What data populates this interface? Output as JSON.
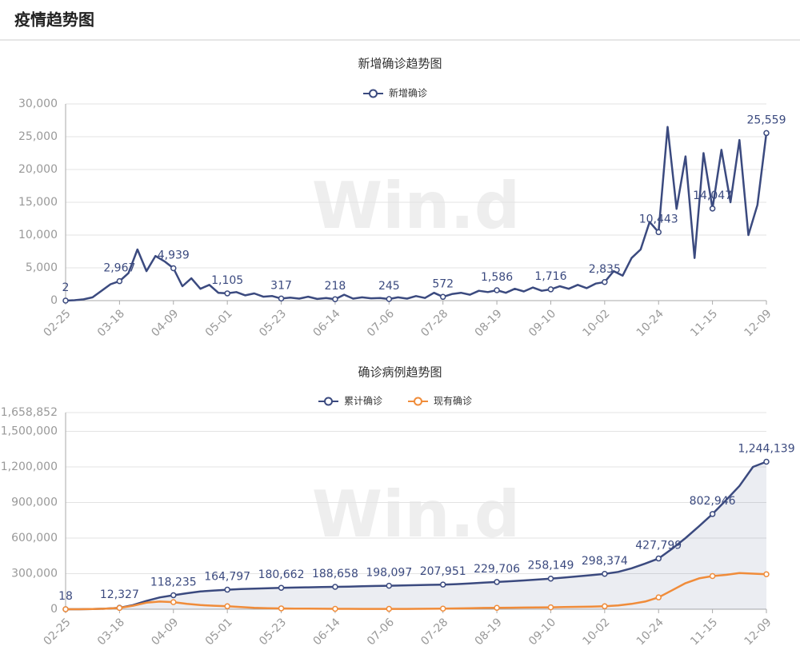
{
  "header": {
    "title": "疫情趋势图"
  },
  "watermark": "Win.d",
  "chart_data": [
    {
      "type": "line",
      "title": "新增确诊趋势图",
      "categories": [
        "02-25",
        null,
        null,
        null,
        null,
        null,
        "03-18",
        null,
        null,
        null,
        null,
        null,
        "04-09",
        null,
        null,
        null,
        null,
        null,
        "05-01",
        null,
        null,
        null,
        null,
        null,
        "05-23",
        null,
        null,
        null,
        null,
        null,
        "06-14",
        null,
        null,
        null,
        null,
        null,
        "07-06",
        null,
        null,
        null,
        null,
        null,
        "07-28",
        null,
        null,
        null,
        null,
        null,
        "08-19",
        null,
        null,
        null,
        null,
        null,
        "09-10",
        null,
        null,
        null,
        null,
        null,
        "10-02",
        null,
        null,
        null,
        null,
        null,
        "10-24",
        null,
        null,
        null,
        null,
        null,
        "11-15",
        null,
        null,
        null,
        null,
        null,
        "12-09"
      ],
      "series": [
        {
          "name": "新增确诊",
          "color": "#3b4a7f",
          "values": [
            2,
            60,
            200,
            500,
            1500,
            2500,
            2967,
            4200,
            7800,
            4500,
            6800,
            6000,
            4939,
            2200,
            3400,
            1800,
            2400,
            1200,
            1105,
            1300,
            800,
            1100,
            600,
            700,
            317,
            450,
            300,
            600,
            250,
            400,
            218,
            900,
            300,
            500,
            350,
            400,
            245,
            500,
            300,
            700,
            400,
            1200,
            572,
            1000,
            1200,
            900,
            1500,
            1300,
            1586,
            1200,
            1800,
            1400,
            2000,
            1500,
            1716,
            2200,
            1800,
            2400,
            1900,
            2600,
            2835,
            4500,
            3800,
            6500,
            7800,
            12000,
            10443,
            26500,
            14000,
            22000,
            6500,
            22500,
            14047,
            23000,
            15000,
            24500,
            10000,
            14600,
            25559
          ],
          "value_labels": [
            "2",
            null,
            null,
            null,
            null,
            null,
            "2,967",
            null,
            null,
            null,
            null,
            null,
            "4,939",
            null,
            null,
            null,
            null,
            null,
            "1,105",
            null,
            null,
            null,
            null,
            null,
            "317",
            null,
            null,
            null,
            null,
            null,
            "218",
            null,
            null,
            null,
            null,
            null,
            "245",
            null,
            null,
            null,
            null,
            null,
            "572",
            null,
            null,
            null,
            null,
            null,
            "1,586",
            null,
            null,
            null,
            null,
            null,
            "1,716",
            null,
            null,
            null,
            null,
            null,
            "2,835",
            null,
            null,
            null,
            null,
            null,
            "10,443",
            null,
            null,
            null,
            null,
            null,
            "14,047",
            null,
            null,
            null,
            null,
            null,
            "25,559"
          ]
        }
      ],
      "ylim": [
        0,
        30000
      ],
      "yticks": [
        0,
        {
          "value": 5000,
          "label": "5,000"
        },
        {
          "value": 10000,
          "label": "10,000"
        },
        {
          "value": 15000,
          "label": "15,000"
        },
        {
          "value": 20000,
          "label": "20,000"
        },
        {
          "value": 25000,
          "label": "25,000"
        },
        {
          "value": 30000,
          "label": "30,000"
        }
      ],
      "grid": true
    },
    {
      "type": "line",
      "title": "确诊病例趋势图",
      "categories": [
        "02-25",
        null,
        null,
        null,
        "03-18",
        null,
        null,
        null,
        "04-09",
        null,
        null,
        null,
        "05-01",
        null,
        null,
        null,
        "05-23",
        null,
        null,
        null,
        "06-14",
        null,
        null,
        null,
        "07-06",
        null,
        null,
        null,
        "07-28",
        null,
        null,
        null,
        "08-19",
        null,
        null,
        null,
        "09-10",
        null,
        null,
        null,
        "10-02",
        null,
        null,
        null,
        "10-24",
        null,
        null,
        null,
        "11-15",
        null,
        null,
        null,
        "12-09"
      ],
      "series": [
        {
          "name": "累计确诊",
          "color": "#3b4a7f",
          "area": true,
          "values": [
            18,
            200,
            1500,
            5000,
            12327,
            35000,
            70000,
            100000,
            118235,
            135000,
            150000,
            158000,
            164797,
            170000,
            174000,
            177500,
            180662,
            183000,
            185000,
            187000,
            188658,
            191000,
            193500,
            196000,
            198097,
            200500,
            203000,
            205500,
            207951,
            212000,
            218000,
            224000,
            229706,
            236000,
            243000,
            250000,
            258149,
            267000,
            277000,
            287000,
            298374,
            315000,
            345000,
            385000,
            427799,
            510000,
            600000,
            700000,
            802946,
            920000,
            1040000,
            1200000,
            1244139
          ],
          "value_labels": [
            "18",
            null,
            null,
            null,
            "12,327",
            null,
            null,
            null,
            "118,235",
            null,
            null,
            null,
            "164,797",
            null,
            null,
            null,
            "180,662",
            null,
            null,
            null,
            "188,658",
            null,
            null,
            null,
            "198,097",
            null,
            null,
            null,
            "207,951",
            null,
            null,
            null,
            "229,706",
            null,
            null,
            null,
            "258,149",
            null,
            null,
            null,
            "298,374",
            null,
            null,
            null,
            "427,799",
            null,
            null,
            null,
            "802,946",
            null,
            null,
            null,
            "1,244,139"
          ]
        },
        {
          "name": "现有确诊",
          "color": "#f08c3a",
          "values": [
            18,
            200,
            1400,
            4500,
            11000,
            30000,
            55000,
            65000,
            60000,
            45000,
            35000,
            30000,
            25000,
            18000,
            12000,
            9000,
            7000,
            5500,
            4500,
            4000,
            3500,
            3200,
            3000,
            3000,
            3000,
            3000,
            3500,
            4000,
            5000,
            7000,
            9000,
            11000,
            12000,
            13000,
            14000,
            15000,
            16000,
            18000,
            20000,
            22000,
            25000,
            32000,
            45000,
            65000,
            100000,
            160000,
            220000,
            260000,
            280000,
            290000,
            305000,
            300000,
            295000
          ]
        }
      ],
      "ylim": [
        0,
        1658852
      ],
      "yticks": [
        0,
        {
          "value": 300000,
          "label": "300,000"
        },
        {
          "value": 600000,
          "label": "600,000"
        },
        {
          "value": 900000,
          "label": "900,000"
        },
        {
          "value": 1200000,
          "label": "1,200,000"
        },
        {
          "value": 1500000,
          "label": "1,500,000"
        },
        {
          "value": 1658852,
          "label": "1,658,852"
        }
      ],
      "grid": true
    }
  ]
}
